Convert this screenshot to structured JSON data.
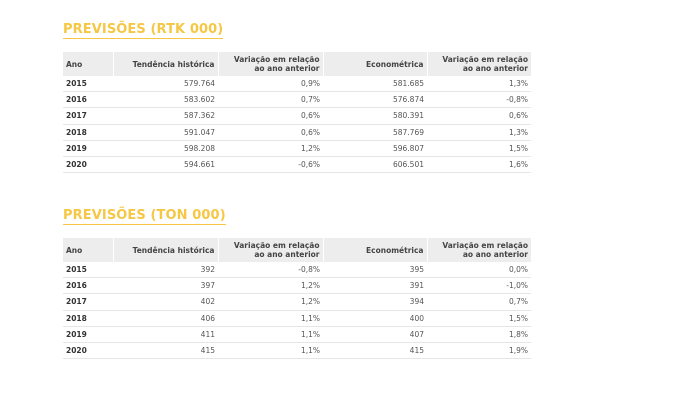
{
  "headers": [
    "Ano",
    "Tendência histórica",
    [
      "Variação em relação",
      "ao ano anterior"
    ],
    "Econométrica",
    [
      "Variação em relação",
      "ao ano anterior"
    ]
  ],
  "sections": [
    {
      "title": "PREVISÕES (RTK 000)",
      "rows": [
        [
          "2015",
          "579.764",
          "0,9%",
          "581.685",
          "1,3%"
        ],
        [
          "2016",
          "583.602",
          "0,7%",
          "576.874",
          "-0,8%"
        ],
        [
          "2017",
          "587.362",
          "0,6%",
          "580.391",
          "0,6%"
        ],
        [
          "2018",
          "591.047",
          "0,6%",
          "587.769",
          "1,3%"
        ],
        [
          "2019",
          "598.208",
          "1,2%",
          "596.807",
          "1,5%"
        ],
        [
          "2020",
          "594.661",
          "-0,6%",
          "606.501",
          "1,6%"
        ]
      ]
    },
    {
      "title": "PREVISÕES (TON 000)",
      "rows": [
        [
          "2015",
          "392",
          "-0,8%",
          "395",
          "0,0%"
        ],
        [
          "2016",
          "397",
          "1,2%",
          "391",
          "-1,0%"
        ],
        [
          "2017",
          "402",
          "1,2%",
          "394",
          "0,7%"
        ],
        [
          "2018",
          "406",
          "1,1%",
          "400",
          "1,5%"
        ],
        [
          "2019",
          "411",
          "1,1%",
          "407",
          "1,8%"
        ],
        [
          "2020",
          "415",
          "1,1%",
          "415",
          "1,9%"
        ]
      ]
    }
  ]
}
